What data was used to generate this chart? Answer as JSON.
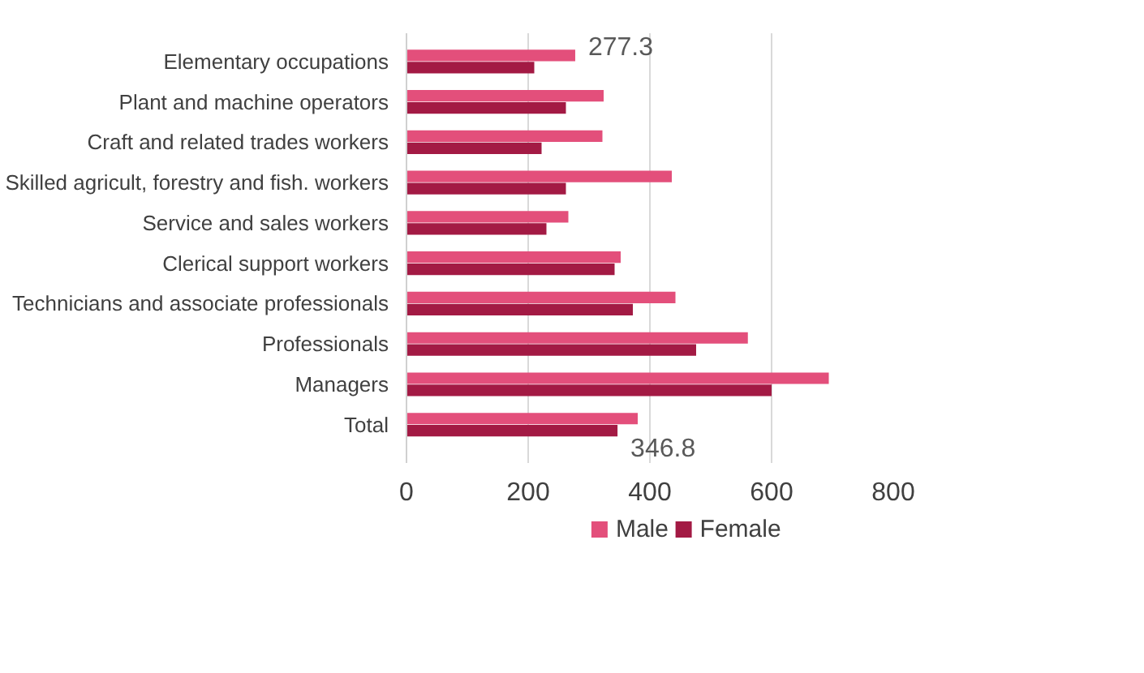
{
  "chart_data": {
    "type": "bar",
    "orientation": "horizontal",
    "categories": [
      "Elementary occupations",
      "Plant and machine operators",
      "Craft and related trades workers",
      "Skilled agricult, forestry and fish. workers",
      "Service and sales workers",
      "Clerical support workers",
      "Technicians and associate professionals",
      "Professionals",
      "Managers",
      "Total"
    ],
    "series": [
      {
        "name": "Male",
        "color": "#e34f7b",
        "values": [
          277.3,
          324,
          322,
          436,
          266,
          352,
          442,
          561,
          694,
          380
        ],
        "value_labels": [
          "277.3",
          null,
          null,
          null,
          null,
          null,
          null,
          null,
          null,
          null
        ]
      },
      {
        "name": "Female",
        "color": "#a31a44",
        "values": [
          210,
          262,
          222,
          262,
          230,
          342,
          372,
          476,
          600,
          346.8
        ],
        "value_labels": [
          null,
          null,
          null,
          null,
          null,
          null,
          null,
          null,
          null,
          "346.8"
        ]
      }
    ],
    "xlim": [
      0,
      800
    ],
    "xticks": [
      0,
      200,
      400,
      600,
      800
    ],
    "grid": "x",
    "legend": "bottom"
  }
}
